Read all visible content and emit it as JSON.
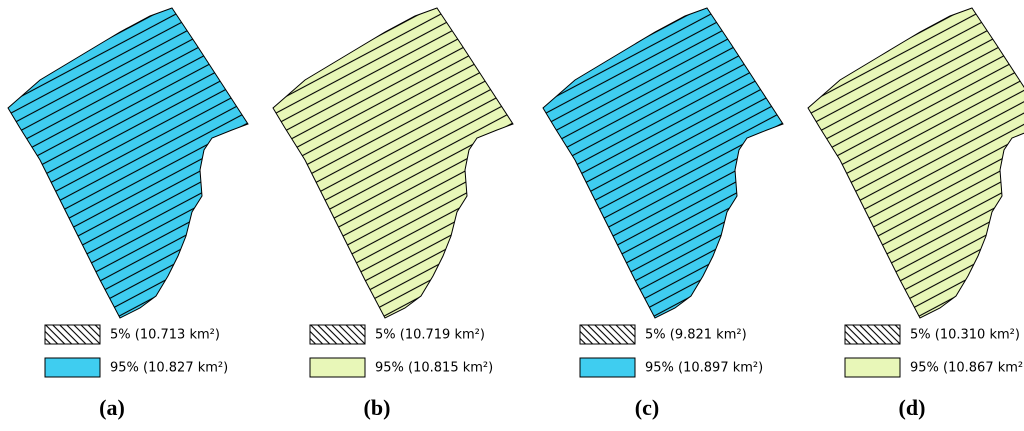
{
  "panels": [
    {
      "label": "(a)",
      "color": "#3fcdf0",
      "legend": [
        "5% (10.713 km²)",
        "95% (10.827 km²)"
      ]
    },
    {
      "label": "(b)",
      "color": "#e8f7b8",
      "legend": [
        "5% (10.719 km²)",
        "95% (10.815 km²)"
      ]
    },
    {
      "label": "(c)",
      "color": "#3fcdf0",
      "legend": [
        "5% (9.821 km²)",
        "95% (10.897 km²)"
      ]
    },
    {
      "label": "(d)",
      "color": "#e8f7b8",
      "legend": [
        "5% (10.310 km²)",
        "95% (10.867 km²)"
      ]
    }
  ]
}
